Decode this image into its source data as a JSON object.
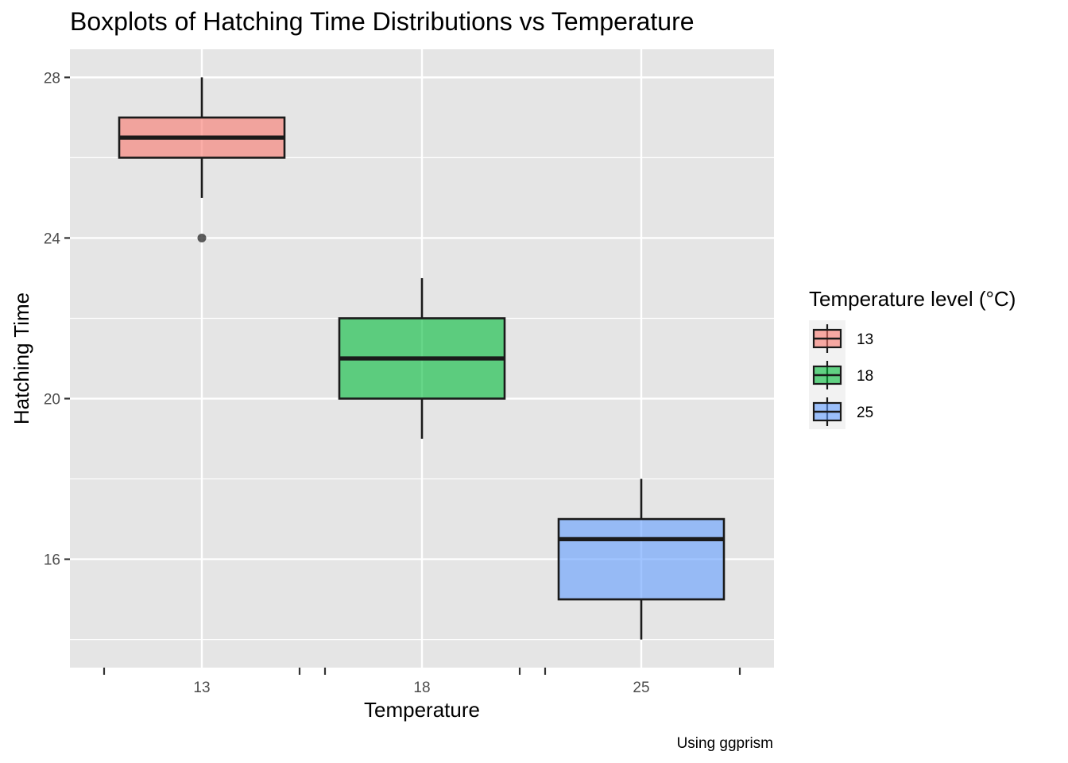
{
  "chart_data": {
    "type": "boxplot",
    "title": "Boxplots of Hatching Time Distributions vs Temperature",
    "xlabel": "Temperature",
    "ylabel": "Hatching Time",
    "caption": "Using ggprism",
    "categories": [
      "13",
      "18",
      "25"
    ],
    "ylim": [
      13.3,
      28.7
    ],
    "y_ticks": [
      16,
      20,
      24,
      28
    ],
    "grid": true,
    "legend": {
      "title": "Temperature level (°C)",
      "placement": "right",
      "entries": [
        "13",
        "18",
        "25"
      ]
    },
    "series": [
      {
        "name": "13",
        "color": "#F8766D",
        "min": 25,
        "q1": 26,
        "median": 26.5,
        "q3": 27,
        "max": 28,
        "outliers": [
          24
        ]
      },
      {
        "name": "18",
        "color": "#00BA38",
        "min": 19,
        "q1": 20,
        "median": 21,
        "q3": 22,
        "max": 23,
        "outliers": []
      },
      {
        "name": "25",
        "color": "#619CFF",
        "min": 14,
        "q1": 15,
        "median": 16.5,
        "q3": 17,
        "max": 18,
        "outliers": []
      }
    ]
  }
}
